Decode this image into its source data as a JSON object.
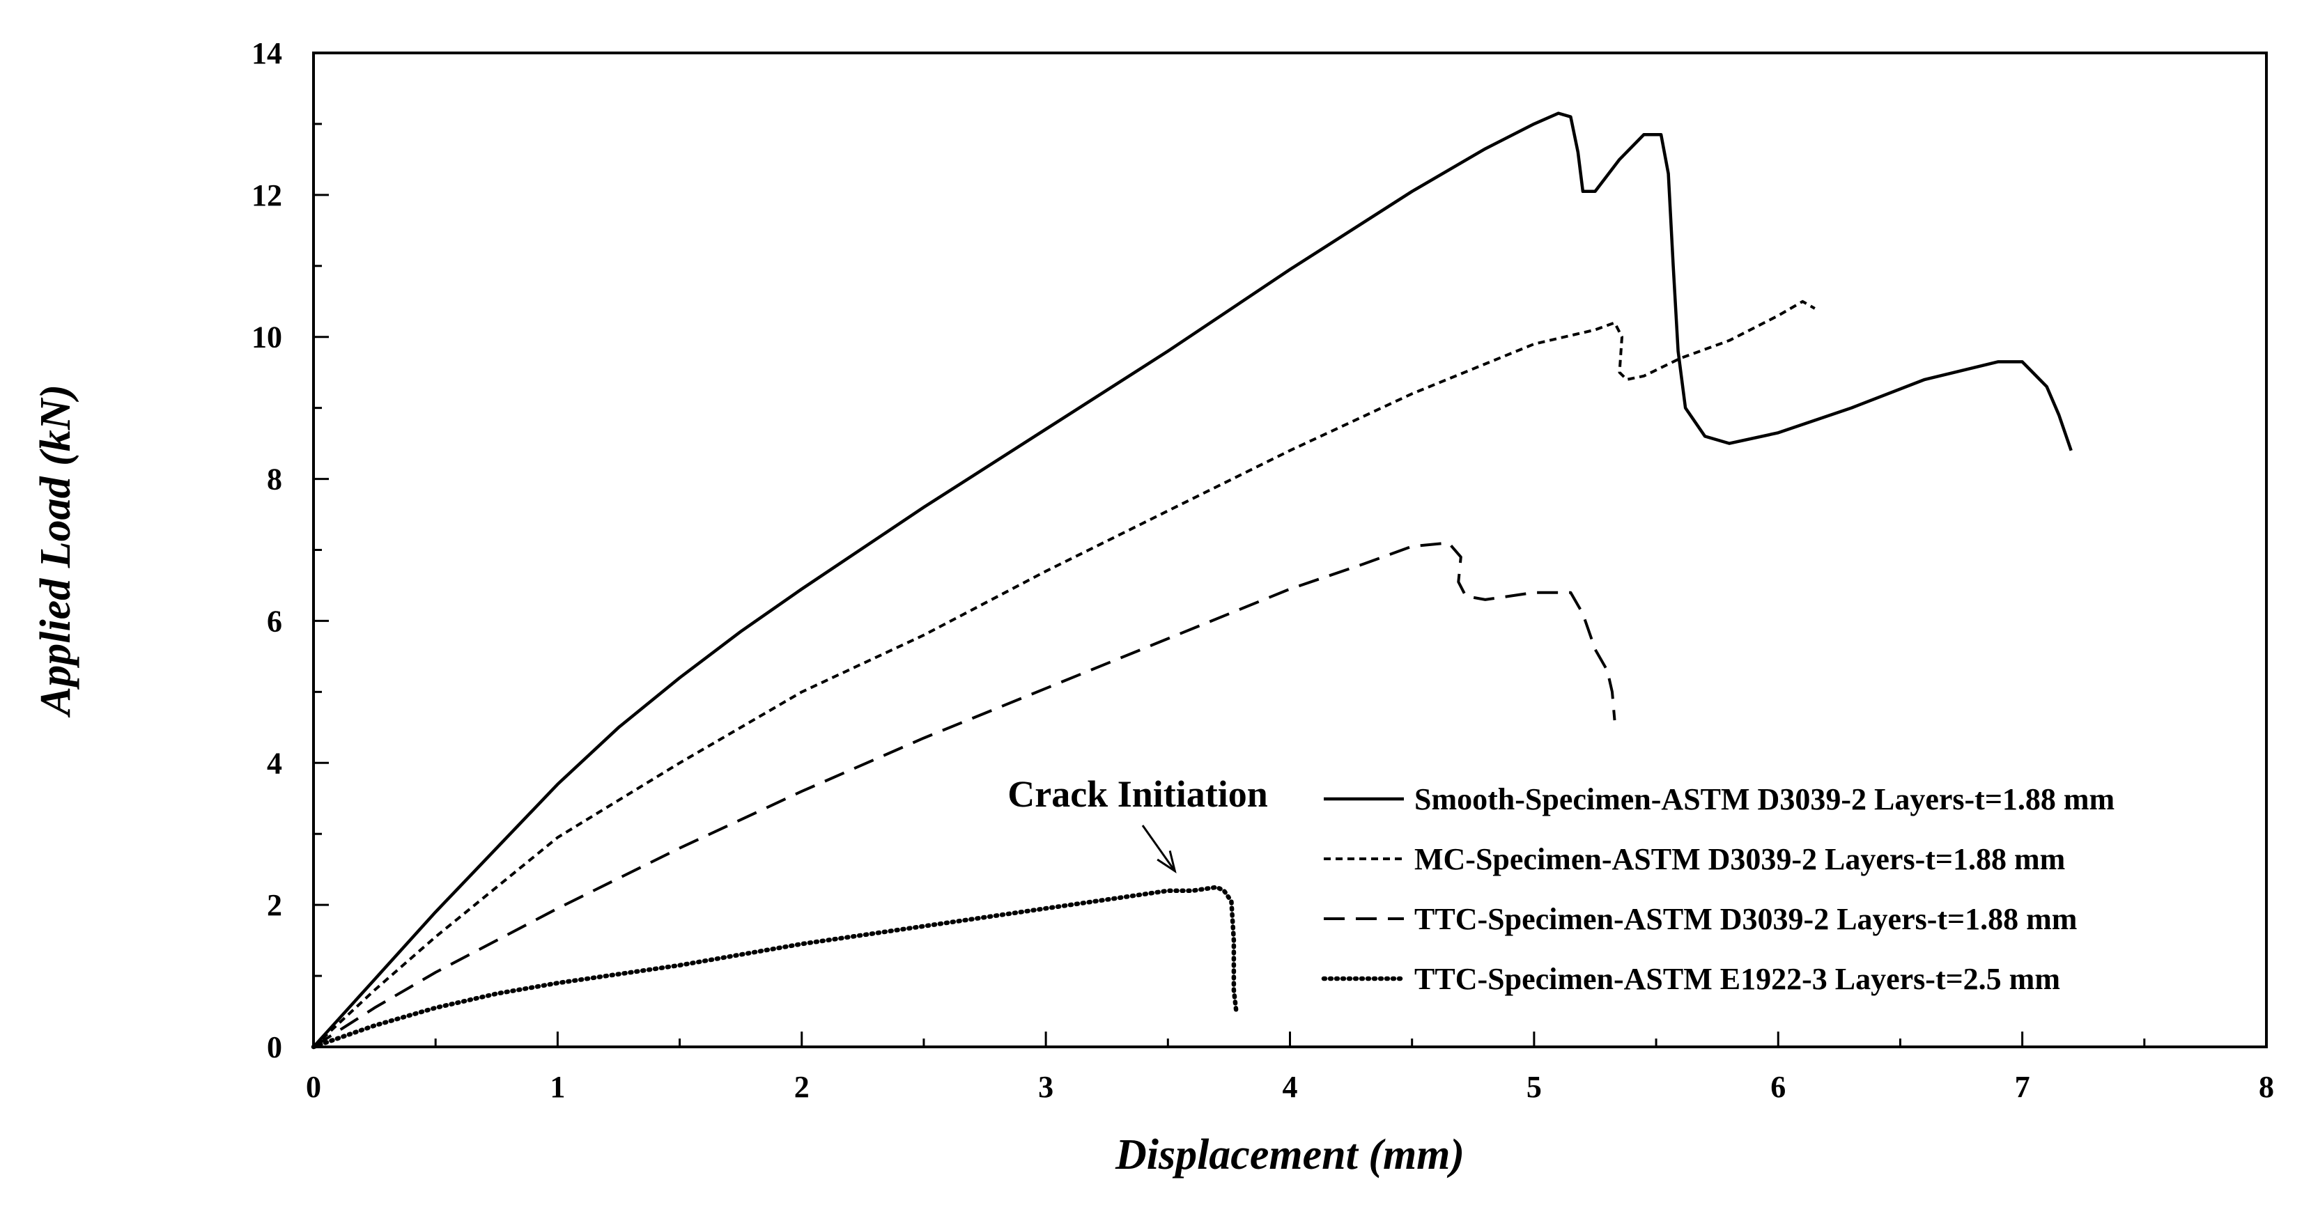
{
  "chart_data": {
    "type": "line",
    "title": "",
    "xlabel": "Displacement (mm)",
    "ylabel": "Applied Load (kN)",
    "xlim": [
      0,
      8
    ],
    "ylim": [
      0,
      14
    ],
    "x_major_ticks": [
      0,
      1,
      2,
      3,
      4,
      5,
      6,
      7,
      8
    ],
    "x_tick_labels": [
      "0",
      "1",
      "2",
      "3",
      "4",
      "5",
      "6",
      "7",
      "8"
    ],
    "y_major_ticks": [
      0,
      2,
      4,
      6,
      8,
      10,
      12,
      14
    ],
    "y_tick_labels": [
      "0",
      "2",
      "4",
      "6",
      "8",
      "10",
      "12",
      "14"
    ],
    "x_minor_step": 0.5,
    "y_minor_step": 1,
    "grid": false,
    "legend_position": "lower-right",
    "series": [
      {
        "name": "Smooth-Specimen-ASTM D3039-2 Layers-t=1.88 mm",
        "style": "solid",
        "color": "#000000",
        "points": [
          [
            0,
            0
          ],
          [
            0.25,
            0.95
          ],
          [
            0.5,
            1.9
          ],
          [
            0.75,
            2.8
          ],
          [
            1.0,
            3.7
          ],
          [
            1.25,
            4.5
          ],
          [
            1.5,
            5.2
          ],
          [
            1.75,
            5.85
          ],
          [
            2.0,
            6.45
          ],
          [
            2.5,
            7.6
          ],
          [
            3.0,
            8.7
          ],
          [
            3.5,
            9.8
          ],
          [
            4.0,
            10.95
          ],
          [
            4.5,
            12.05
          ],
          [
            4.8,
            12.65
          ],
          [
            5.0,
            13.0
          ],
          [
            5.1,
            13.15
          ],
          [
            5.15,
            13.1
          ],
          [
            5.18,
            12.6
          ],
          [
            5.2,
            12.05
          ],
          [
            5.25,
            12.05
          ],
          [
            5.35,
            12.5
          ],
          [
            5.45,
            12.85
          ],
          [
            5.52,
            12.85
          ],
          [
            5.55,
            12.3
          ],
          [
            5.57,
            11.0
          ],
          [
            5.59,
            9.8
          ],
          [
            5.62,
            9.0
          ],
          [
            5.7,
            8.6
          ],
          [
            5.8,
            8.5
          ],
          [
            6.0,
            8.65
          ],
          [
            6.3,
            9.0
          ],
          [
            6.6,
            9.4
          ],
          [
            6.9,
            9.65
          ],
          [
            7.0,
            9.65
          ],
          [
            7.1,
            9.3
          ],
          [
            7.15,
            8.9
          ],
          [
            7.2,
            8.4
          ]
        ]
      },
      {
        "name": "MC-Specimen-ASTM D3039-2 Layers-t=1.88 mm",
        "style": "short-dash",
        "color": "#000000",
        "points": [
          [
            0,
            0
          ],
          [
            0.25,
            0.8
          ],
          [
            0.5,
            1.55
          ],
          [
            0.75,
            2.25
          ],
          [
            1.0,
            2.95
          ],
          [
            1.5,
            4.0
          ],
          [
            2.0,
            5.0
          ],
          [
            2.5,
            5.8
          ],
          [
            3.0,
            6.7
          ],
          [
            3.5,
            7.55
          ],
          [
            4.0,
            8.4
          ],
          [
            4.5,
            9.2
          ],
          [
            5.0,
            9.9
          ],
          [
            5.25,
            10.1
          ],
          [
            5.33,
            10.2
          ],
          [
            5.36,
            10.0
          ],
          [
            5.35,
            9.5
          ],
          [
            5.38,
            9.4
          ],
          [
            5.45,
            9.45
          ],
          [
            5.6,
            9.7
          ],
          [
            5.8,
            9.95
          ],
          [
            6.0,
            10.3
          ],
          [
            6.1,
            10.5
          ],
          [
            6.15,
            10.4
          ]
        ]
      },
      {
        "name": "TTC-Specimen-ASTM D3039-2 Layers-t=1.88 mm",
        "style": "long-dash",
        "color": "#000000",
        "points": [
          [
            0,
            0
          ],
          [
            0.25,
            0.55
          ],
          [
            0.5,
            1.05
          ],
          [
            0.75,
            1.5
          ],
          [
            1.0,
            1.95
          ],
          [
            1.5,
            2.8
          ],
          [
            2.0,
            3.6
          ],
          [
            2.5,
            4.35
          ],
          [
            3.0,
            5.05
          ],
          [
            3.5,
            5.75
          ],
          [
            4.0,
            6.45
          ],
          [
            4.3,
            6.8
          ],
          [
            4.5,
            7.05
          ],
          [
            4.65,
            7.1
          ],
          [
            4.7,
            6.9
          ],
          [
            4.69,
            6.55
          ],
          [
            4.72,
            6.35
          ],
          [
            4.8,
            6.3
          ],
          [
            5.0,
            6.4
          ],
          [
            5.15,
            6.4
          ],
          [
            5.2,
            6.1
          ],
          [
            5.25,
            5.6
          ],
          [
            5.3,
            5.3
          ],
          [
            5.32,
            5.0
          ],
          [
            5.33,
            4.6
          ]
        ]
      },
      {
        "name": "TTC-Specimen-ASTM E1922-3 Layers-t=2.5 mm",
        "style": "dotted",
        "color": "#000000",
        "points": [
          [
            0,
            0
          ],
          [
            0.25,
            0.3
          ],
          [
            0.5,
            0.55
          ],
          [
            0.75,
            0.75
          ],
          [
            1.0,
            0.9
          ],
          [
            1.5,
            1.15
          ],
          [
            2.0,
            1.45
          ],
          [
            2.5,
            1.7
          ],
          [
            3.0,
            1.95
          ],
          [
            3.3,
            2.1
          ],
          [
            3.5,
            2.2
          ],
          [
            3.6,
            2.2
          ],
          [
            3.7,
            2.25
          ],
          [
            3.73,
            2.2
          ],
          [
            3.76,
            2.05
          ],
          [
            3.77,
            1.5
          ],
          [
            3.77,
            0.8
          ],
          [
            3.78,
            0.5
          ]
        ]
      }
    ],
    "annotations": [
      {
        "text": "Crack Initiation",
        "arrow_to": [
          3.5,
          2.3
        ]
      }
    ]
  }
}
